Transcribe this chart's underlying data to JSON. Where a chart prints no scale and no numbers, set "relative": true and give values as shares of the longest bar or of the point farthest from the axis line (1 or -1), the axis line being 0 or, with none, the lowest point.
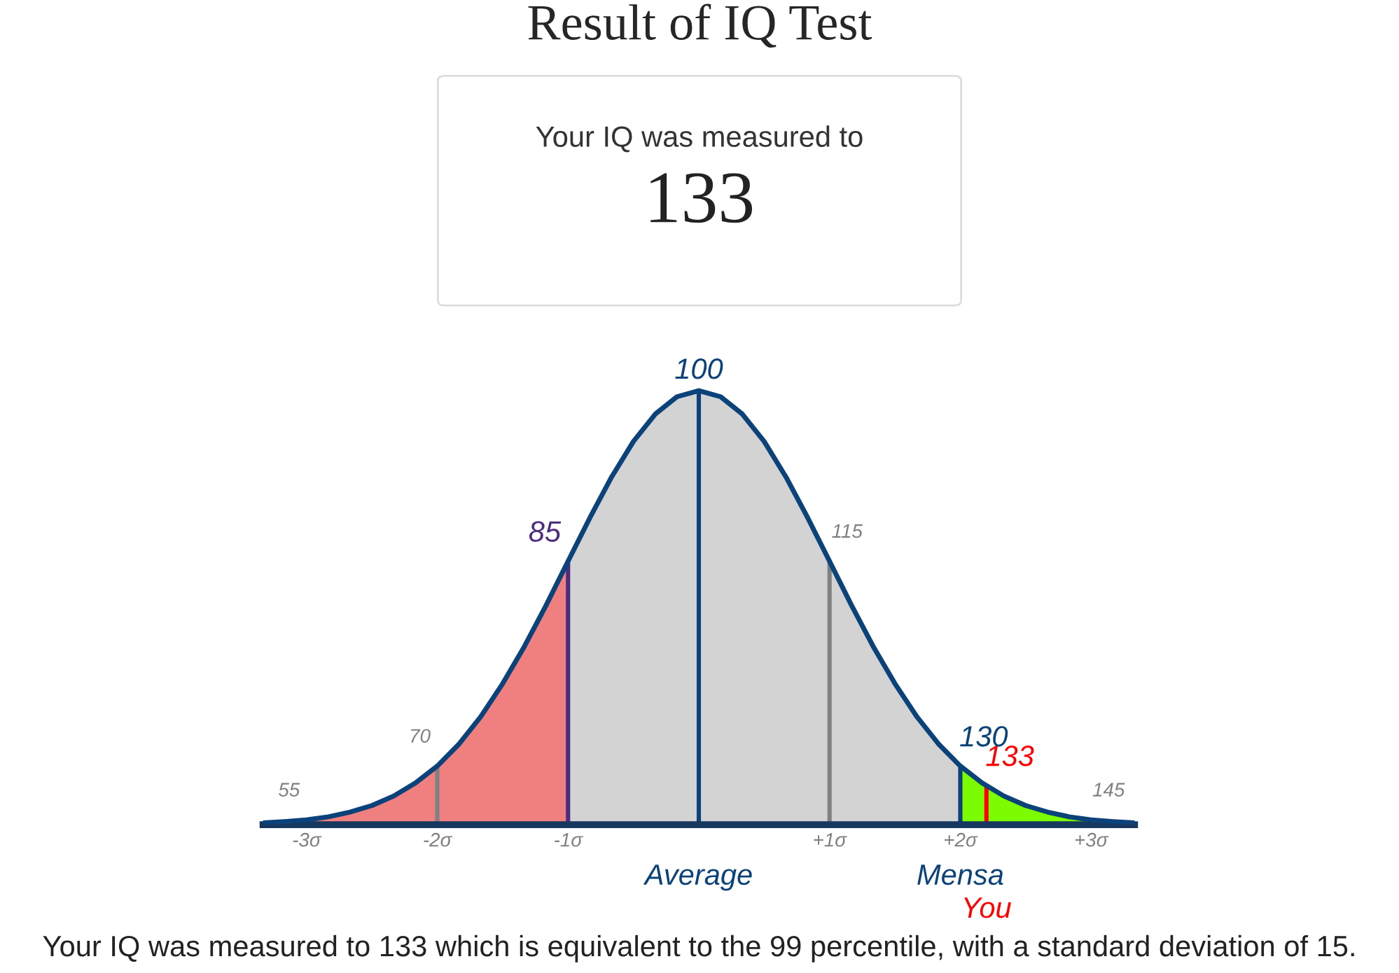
{
  "chart_data": {
    "type": "area",
    "title": "Result of IQ Test",
    "subtitle": "Your IQ was measured to",
    "relative": true,
    "series": [
      {
        "color": "#f08080",
        "x": [
          -3.333,
          -3.167,
          -3,
          -2.833,
          -2.667,
          -2.5,
          -2.333,
          -2.167,
          -2,
          -1.833,
          -1.667,
          -1.5,
          -1.333,
          -1.167,
          -1
        ],
        "values": [
          0.004,
          0.007,
          0.011,
          0.018,
          0.029,
          0.044,
          0.066,
          0.096,
          0.135,
          0.186,
          0.249,
          0.325,
          0.411,
          0.506,
          0.607
        ]
      },
      {
        "color": "#d3d3d3",
        "x": [
          -1,
          -0.833,
          -0.667,
          -0.5,
          -0.333,
          -0.167,
          0,
          0.167,
          0.333,
          0.5,
          0.667,
          0.833,
          1,
          1.167,
          1.333,
          1.5,
          1.667,
          1.833,
          2
        ],
        "values": [
          0.607,
          0.707,
          0.801,
          0.883,
          0.946,
          0.986,
          1,
          0.986,
          0.946,
          0.883,
          0.801,
          0.707,
          0.607,
          0.506,
          0.411,
          0.325,
          0.249,
          0.186,
          0.135
        ]
      },
      {
        "color": "#7cfc00",
        "x": [
          2,
          2.167,
          2.333,
          2.5,
          2.667,
          2.833,
          3,
          3.167,
          3.333
        ],
        "values": [
          0.135,
          0.096,
          0.066,
          0.044,
          0.029,
          0.018,
          0.011,
          0.007,
          0.004
        ]
      },
      {
        "type": "line",
        "color": "#0b4279",
        "x": [
          -3.333,
          -3.167,
          -3,
          -2.833,
          -2.667,
          -2.5,
          -2.333,
          -2.167,
          -2,
          -1.833,
          -1.667,
          -1.5,
          -1.333,
          -1.167,
          -1,
          -0.833,
          -0.667,
          -0.5,
          -0.333,
          -0.167,
          0,
          0.167,
          0.333,
          0.5,
          0.667,
          0.833,
          1,
          1.167,
          1.333,
          1.5,
          1.667,
          1.833,
          2,
          2.167,
          2.333,
          2.5,
          2.667,
          2.833,
          3,
          3.167,
          3.333
        ],
        "values": [
          0.004,
          0.007,
          0.011,
          0.018,
          0.029,
          0.044,
          0.066,
          0.096,
          0.135,
          0.186,
          0.249,
          0.325,
          0.411,
          0.506,
          0.607,
          0.707,
          0.801,
          0.883,
          0.946,
          0.986,
          1,
          0.986,
          0.946,
          0.883,
          0.801,
          0.707,
          0.607,
          0.506,
          0.411,
          0.325,
          0.249,
          0.186,
          0.135,
          0.096,
          0.066,
          0.044,
          0.029,
          0.018,
          0.011,
          0.007,
          0.004
        ]
      }
    ],
    "xlim": [
      -3.333,
      3.333
    ],
    "xticks": [
      {
        "value": -3,
        "label": "-3σ"
      },
      {
        "value": -2,
        "label": "-2σ"
      },
      {
        "value": -1,
        "label": "-1σ"
      },
      {
        "value": 1,
        "label": "+1σ"
      },
      {
        "value": 2,
        "label": "+2σ"
      },
      {
        "value": 3,
        "label": "+3σ"
      }
    ],
    "tick_labels": "x",
    "grid": false,
    "ref_lines": [
      {
        "axis": "x",
        "value": -2,
        "color": "#808080"
      },
      {
        "axis": "x",
        "value": -1,
        "color": "#4b2c7f"
      },
      {
        "axis": "x",
        "value": 0,
        "color": "#0b4279"
      },
      {
        "axis": "x",
        "value": 1,
        "color": "#808080"
      },
      {
        "axis": "x",
        "value": 2,
        "color": "#0b4279"
      },
      {
        "axis": "x",
        "value": 2.2,
        "color": "#ff0000"
      }
    ],
    "annotations": [
      "133",
      {
        "text": "100",
        "x": 0,
        "y": 1
      },
      {
        "text": "133",
        "x": 2.2,
        "y": 0.09
      },
      {
        "text": "55",
        "x": -3,
        "y": 0.011
      },
      {
        "text": "70",
        "x": -2,
        "y": 0.135
      },
      {
        "text": "85",
        "x": -1,
        "y": 0.607
      },
      {
        "text": "115",
        "x": 1,
        "y": 0.607
      },
      {
        "text": "130",
        "x": 2,
        "y": 0.135
      },
      {
        "text": "145",
        "x": 3,
        "y": 0.011
      },
      {
        "text": "Average",
        "x": 0,
        "y": 0
      },
      {
        "text": "Mensa",
        "x": 2,
        "y": 0
      },
      {
        "text": "You",
        "x": 2.2,
        "y": 0
      },
      "Your IQ was measured to 133 which is equivalent to the 99 percentile, with a standard deviation of 15."
    ]
  }
}
